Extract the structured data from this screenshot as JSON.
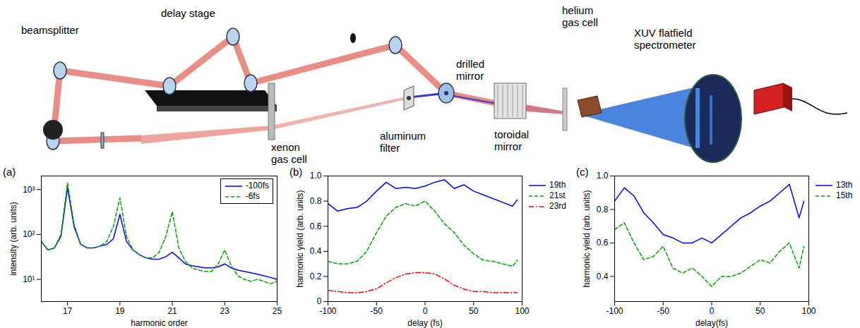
{
  "diagram": {
    "labels": [
      {
        "text": [
          "beamsplitter"
        ]
      },
      {
        "text": [
          "delay stage"
        ]
      },
      {
        "text": [
          "xenon",
          "gas cell"
        ]
      },
      {
        "text": [
          "aluminum",
          "filter"
        ]
      },
      {
        "text": [
          "drilled",
          "mirror"
        ]
      },
      {
        "text": [
          "toroidal",
          "mirror"
        ]
      },
      {
        "text": [
          "helium",
          "gas cell"
        ]
      },
      {
        "text": [
          "XUV flatfield",
          "spectrometer"
        ]
      }
    ]
  },
  "chart_data": [
    {
      "type": "line",
      "panel": "(a)",
      "xlabel": "harmonic order",
      "ylabel": "intensity (arb. units)",
      "log": "y",
      "legend": "upper right",
      "xlim": [
        16,
        25
      ],
      "xticks": [
        17,
        19,
        21,
        23,
        25
      ],
      "ylim": [
        3.2,
        2000
      ],
      "yticks": [
        {
          "value": 10,
          "label": "10¹"
        },
        {
          "value": 100,
          "label": "10²"
        },
        {
          "value": 1000,
          "label": "10³"
        }
      ],
      "x": [
        16,
        16.25,
        16.5,
        16.75,
        17,
        17.25,
        17.5,
        17.75,
        18,
        18.25,
        18.5,
        18.75,
        19,
        19.25,
        19.5,
        19.75,
        20,
        20.25,
        20.5,
        20.75,
        21,
        21.25,
        21.5,
        21.75,
        22,
        22.25,
        22.5,
        22.75,
        23,
        23.25,
        23.5,
        23.75,
        24,
        24.25,
        24.5,
        24.75,
        25
      ],
      "series": [
        {
          "name": "-100fs",
          "color": "#0000ff",
          "line_style": "solid",
          "values": [
            70,
            45,
            50,
            90,
            1100,
            150,
            60,
            50,
            50,
            55,
            60,
            80,
            280,
            70,
            45,
            35,
            30,
            28,
            28,
            32,
            40,
            30,
            22,
            20,
            19,
            18,
            18,
            19,
            22,
            18,
            16,
            15,
            14,
            13,
            12,
            11,
            10
          ]
        },
        {
          "name": "-6fs",
          "color": "#00a000",
          "line_style": "dashed",
          "values": [
            70,
            45,
            50,
            100,
            1400,
            170,
            60,
            50,
            50,
            55,
            70,
            150,
            650,
            90,
            45,
            35,
            30,
            30,
            40,
            90,
            320,
            50,
            25,
            18,
            16,
            15,
            15,
            22,
            45,
            20,
            12,
            10,
            9,
            10,
            9,
            8,
            9
          ]
        }
      ]
    },
    {
      "type": "line",
      "panel": "(b)",
      "xlabel": "delay (fs)",
      "ylabel": "harmonic yield (arb. units)",
      "legend": "right",
      "xlim": [
        -100,
        100
      ],
      "xticks": [
        -100,
        -50,
        0,
        50,
        100
      ],
      "ylim": [
        0,
        1
      ],
      "yticks": [
        0,
        0.2,
        0.4,
        0.6,
        0.8,
        {
          "value": 1,
          "label": "1.0"
        }
      ],
      "x": [
        -100,
        -90,
        -80,
        -70,
        -60,
        -50,
        -40,
        -30,
        -20,
        -10,
        0,
        10,
        20,
        30,
        40,
        50,
        60,
        70,
        80,
        90,
        95
      ],
      "series": [
        {
          "name": "19th",
          "color": "#0000ff",
          "line_style": "solid",
          "values": [
            0.78,
            0.72,
            0.74,
            0.75,
            0.8,
            0.88,
            0.95,
            0.9,
            0.91,
            0.9,
            0.92,
            0.95,
            0.97,
            0.9,
            0.93,
            0.88,
            0.85,
            0.82,
            0.79,
            0.76,
            0.81
          ]
        },
        {
          "name": "21st",
          "color": "#00a000",
          "line_style": "dashed",
          "values": [
            0.32,
            0.3,
            0.3,
            0.32,
            0.4,
            0.55,
            0.68,
            0.75,
            0.78,
            0.76,
            0.8,
            0.72,
            0.62,
            0.55,
            0.45,
            0.38,
            0.33,
            0.32,
            0.3,
            0.28,
            0.33
          ]
        },
        {
          "name": "23rd",
          "color": "#ff0000",
          "line_style": "dashdot",
          "values": [
            0.09,
            0.08,
            0.07,
            0.07,
            0.08,
            0.1,
            0.15,
            0.19,
            0.22,
            0.23,
            0.23,
            0.22,
            0.18,
            0.13,
            0.1,
            0.08,
            0.08,
            0.07,
            0.07,
            0.07,
            0.07
          ]
        }
      ]
    },
    {
      "type": "line",
      "panel": "(c)",
      "xlabel": "delay(fs)",
      "ylabel": "harmonic yield (arb. units)",
      "legend": "right",
      "xlim": [
        -100,
        100
      ],
      "xticks": [
        -100,
        -50,
        0,
        50,
        100
      ],
      "ylim": [
        0.25,
        1
      ],
      "yticks": [
        0.4,
        0.6,
        0.8,
        {
          "value": 1,
          "label": "1.0"
        }
      ],
      "x": [
        -100,
        -90,
        -80,
        -70,
        -60,
        -50,
        -40,
        -30,
        -20,
        -10,
        0,
        10,
        20,
        30,
        40,
        50,
        60,
        70,
        80,
        90,
        95
      ],
      "series": [
        {
          "name": "13th",
          "color": "#0000ff",
          "line_style": "solid",
          "values": [
            0.85,
            0.93,
            0.88,
            0.78,
            0.72,
            0.65,
            0.63,
            0.6,
            0.6,
            0.63,
            0.6,
            0.65,
            0.7,
            0.75,
            0.78,
            0.82,
            0.85,
            0.9,
            0.95,
            0.75,
            0.85
          ]
        },
        {
          "name": "15th",
          "color": "#00a000",
          "line_style": "dashed",
          "values": [
            0.68,
            0.72,
            0.6,
            0.5,
            0.52,
            0.58,
            0.45,
            0.42,
            0.45,
            0.4,
            0.34,
            0.4,
            0.4,
            0.42,
            0.46,
            0.5,
            0.48,
            0.55,
            0.6,
            0.45,
            0.58
          ]
        }
      ]
    }
  ]
}
